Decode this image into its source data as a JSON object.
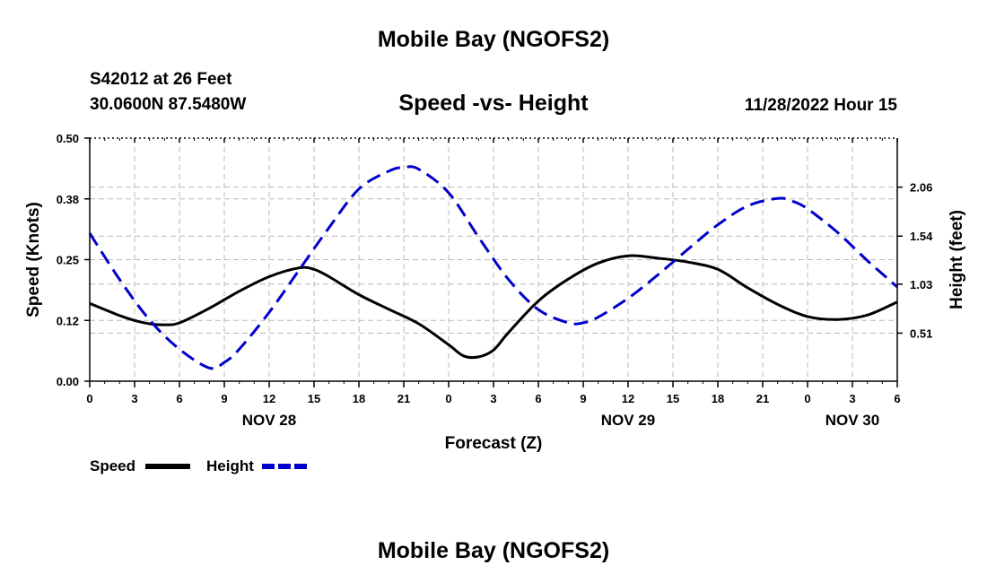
{
  "header": {
    "title": "Mobile Bay (NGOFS2)",
    "station": "S42012 at 26 Feet",
    "coordinates": "30.0600N  87.5480W",
    "datetime": "11/28/2022 Hour 15"
  },
  "footer": {
    "title": "Mobile Bay (NGOFS2)"
  },
  "chart_data": {
    "type": "line",
    "title": "Speed -vs- Height",
    "xlabel": "Forecast (Z)",
    "ylabel": "Speed (Knots)",
    "y2label": "Height (feet)",
    "x_unit": "hours since NOV 28 00Z",
    "xlim": [
      0,
      54
    ],
    "ylim": [
      0,
      0.5
    ],
    "y2lim": [
      0,
      2.58
    ],
    "grid": true,
    "x_ticks": [
      {
        "x": 0,
        "label": "0"
      },
      {
        "x": 3,
        "label": "3"
      },
      {
        "x": 6,
        "label": "6"
      },
      {
        "x": 9,
        "label": "9"
      },
      {
        "x": 12,
        "label": "12"
      },
      {
        "x": 15,
        "label": "15"
      },
      {
        "x": 18,
        "label": "18"
      },
      {
        "x": 21,
        "label": "21"
      },
      {
        "x": 24,
        "label": "0"
      },
      {
        "x": 27,
        "label": "3"
      },
      {
        "x": 30,
        "label": "6"
      },
      {
        "x": 33,
        "label": "9"
      },
      {
        "x": 36,
        "label": "12"
      },
      {
        "x": 39,
        "label": "15"
      },
      {
        "x": 42,
        "label": "18"
      },
      {
        "x": 45,
        "label": "21"
      },
      {
        "x": 48,
        "label": "0"
      },
      {
        "x": 51,
        "label": "3"
      },
      {
        "x": 54,
        "label": "6"
      }
    ],
    "date_labels": [
      {
        "x": 12,
        "label": "NOV 28"
      },
      {
        "x": 36,
        "label": "NOV 29"
      },
      {
        "x": 51,
        "label": "NOV 30"
      }
    ],
    "y_ticks": [
      {
        "value": 0.0,
        "label": "0.00"
      },
      {
        "value": 0.125,
        "label": "0.12"
      },
      {
        "value": 0.25,
        "label": "0.25"
      },
      {
        "value": 0.375,
        "label": "0.38"
      },
      {
        "value": 0.5,
        "label": "0.50"
      }
    ],
    "y2_ticks": [
      {
        "value": 0.51,
        "label": "0.51"
      },
      {
        "value": 1.03,
        "label": "1.03"
      },
      {
        "value": 1.54,
        "label": "1.54"
      },
      {
        "value": 2.06,
        "label": "2.06"
      }
    ],
    "series": [
      {
        "name": "Speed",
        "axis": "left",
        "color": "#000000",
        "style": "solid",
        "x": [
          0,
          2,
          3,
          4,
          5,
          6,
          8,
          10,
          12,
          14,
          15,
          16,
          18,
          20,
          22,
          24,
          25,
          26,
          27,
          28,
          30,
          32,
          34,
          36,
          38,
          40,
          42,
          44,
          46,
          48,
          50,
          52,
          54
        ],
        "values": [
          0.16,
          0.135,
          0.125,
          0.118,
          0.116,
          0.12,
          0.15,
          0.185,
          0.215,
          0.233,
          0.23,
          0.215,
          0.178,
          0.148,
          0.118,
          0.075,
          0.052,
          0.05,
          0.064,
          0.1,
          0.165,
          0.21,
          0.243,
          0.258,
          0.253,
          0.245,
          0.23,
          0.192,
          0.158,
          0.133,
          0.127,
          0.136,
          0.163
        ]
      },
      {
        "name": "Height",
        "axis": "right",
        "color": "#0000cc",
        "style": "dashed",
        "x": [
          0,
          2,
          4,
          6,
          8,
          9,
          10,
          12,
          14,
          16,
          18,
          20,
          21,
          22,
          24,
          26,
          28,
          30,
          32,
          33,
          34,
          36,
          38,
          40,
          42,
          44,
          46,
          47,
          48,
          50,
          52,
          54
        ],
        "values": [
          1.57,
          1.08,
          0.65,
          0.34,
          0.14,
          0.2,
          0.34,
          0.73,
          1.18,
          1.63,
          2.04,
          2.23,
          2.27,
          2.25,
          2.0,
          1.53,
          1.08,
          0.76,
          0.62,
          0.62,
          0.68,
          0.88,
          1.13,
          1.4,
          1.66,
          1.86,
          1.94,
          1.91,
          1.83,
          1.58,
          1.28,
          1.0
        ]
      }
    ],
    "legend": [
      {
        "label": "Speed",
        "color": "#000000",
        "style": "solid"
      },
      {
        "label": "Height",
        "color": "#0000cc",
        "style": "dashed"
      }
    ],
    "legend_position": "bottom-left"
  }
}
